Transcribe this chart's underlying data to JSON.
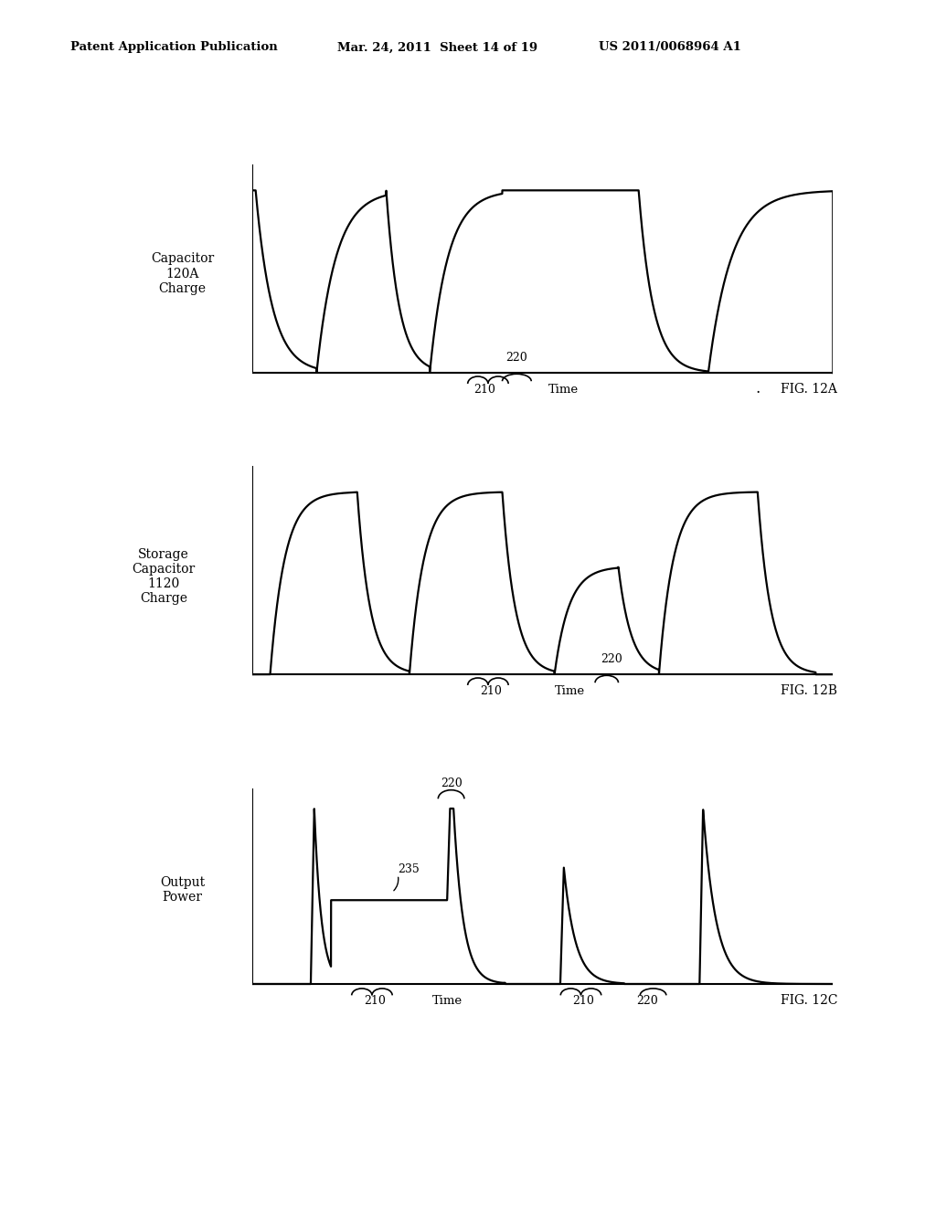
{
  "bg_color": "#ffffff",
  "header_left": "Patent Application Publication",
  "header_mid": "Mar. 24, 2011  Sheet 14 of 19",
  "header_right": "US 2011/0068964 A1",
  "fig12a_label": "FIG. 12A",
  "fig12b_label": "FIG. 12B",
  "fig12c_label": "FIG. 12C",
  "ylabel_12a": "Capacitor\n120A\nCharge",
  "ylabel_12b": "Storage\nCapacitor\n1120\nCharge",
  "ylabel_12c": "Output\nPower",
  "xlabel": "Time",
  "ann_210": "210",
  "ann_220": "220",
  "ann_235": "235"
}
